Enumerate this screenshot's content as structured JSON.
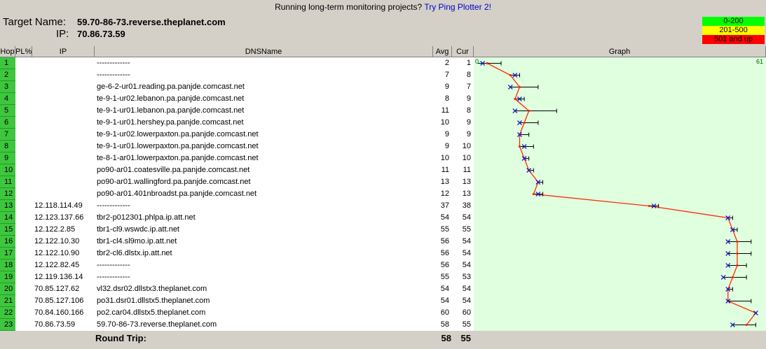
{
  "banner": {
    "text": "Running long-term monitoring projects?",
    "link": "Try Ping Plotter 2!"
  },
  "target": {
    "name_label": "Target Name:",
    "name_value": "59.70-86-73.reverse.theplanet.com",
    "ip_label": "IP:",
    "ip_value": "70.86.73.59"
  },
  "legend": [
    {
      "label": "0-200",
      "color": "#00ff00"
    },
    {
      "label": "201-500",
      "color": "#ffff00"
    },
    {
      "label": "501 and up",
      "color": "#ff0000"
    }
  ],
  "columns": {
    "hop": "Hop",
    "pl": "PL%",
    "ip": "IP",
    "dns": "DNSName",
    "avg": "Avg",
    "cur": "Cur",
    "graph": "Graph"
  },
  "graph": {
    "scale_min": "0",
    "scale_max": "61",
    "line_color": "#ff2a00",
    "marker_color": "#2020c0"
  },
  "rows": [
    {
      "hop": "1",
      "ip": "",
      "dns": "-------------",
      "avg": "2",
      "cur": "1",
      "min": 0,
      "max": 5
    },
    {
      "hop": "2",
      "ip": "",
      "dns": "-------------",
      "avg": "7",
      "cur": "8",
      "min": 7,
      "max": 9
    },
    {
      "hop": "3",
      "ip": "",
      "dns": "ge-6-2-ur01.reading.pa.panjde.comcast.net",
      "avg": "9",
      "cur": "7",
      "min": 7,
      "max": 13
    },
    {
      "hop": "4",
      "ip": "",
      "dns": "te-9-1-ur02.lebanon.pa.panjde.comcast.net",
      "avg": "8",
      "cur": "9",
      "min": 8,
      "max": 10
    },
    {
      "hop": "5",
      "ip": "",
      "dns": "te-9-1-ur01.lebanon.pa.panjde.comcast.net",
      "avg": "11",
      "cur": "8",
      "min": 8,
      "max": 17
    },
    {
      "hop": "6",
      "ip": "",
      "dns": "te-9-1-ur01.hershey.pa.panjde.comcast.net",
      "avg": "10",
      "cur": "9",
      "min": 9,
      "max": 13
    },
    {
      "hop": "7",
      "ip": "",
      "dns": "te-9-1-ur02.lowerpaxton.pa.panjde.comcast.net",
      "avg": "9",
      "cur": "9",
      "min": 9,
      "max": 11
    },
    {
      "hop": "8",
      "ip": "",
      "dns": "te-9-1-ur01.lowerpaxton.pa.panjde.comcast.net",
      "avg": "9",
      "cur": "10",
      "min": 9,
      "max": 12
    },
    {
      "hop": "9",
      "ip": "",
      "dns": "te-8-1-ar01.lowerpaxton.pa.panjde.comcast.net",
      "avg": "10",
      "cur": "10",
      "min": 10,
      "max": 11
    },
    {
      "hop": "10",
      "ip": "",
      "dns": "po90-ar01.coatesville.pa.panjde.comcast.net",
      "avg": "11",
      "cur": "11",
      "min": 11,
      "max": 12
    },
    {
      "hop": "11",
      "ip": "",
      "dns": "po90-ar01.wallingford.pa.panjde.comcast.net",
      "avg": "13",
      "cur": "13",
      "min": 13,
      "max": 14
    },
    {
      "hop": "12",
      "ip": "",
      "dns": "po90-ar01.401nbroadst.pa.panjde.comcast.net",
      "avg": "12",
      "cur": "13",
      "min": 12,
      "max": 14
    },
    {
      "hop": "13",
      "ip": "12.118.114.49",
      "dns": "-------------",
      "avg": "37",
      "cur": "38",
      "min": 37,
      "max": 39
    },
    {
      "hop": "14",
      "ip": "12.123.137.66",
      "dns": "tbr2-p012301.phlpa.ip.att.net",
      "avg": "54",
      "cur": "54",
      "min": 54,
      "max": 55
    },
    {
      "hop": "15",
      "ip": "12.122.2.85",
      "dns": "tbr1-cl9.wswdc.ip.att.net",
      "avg": "55",
      "cur": "55",
      "min": 55,
      "max": 56
    },
    {
      "hop": "16",
      "ip": "12.122.10.30",
      "dns": "tbr1-cl4.sl9mo.ip.att.net",
      "avg": "56",
      "cur": "54",
      "min": 54,
      "max": 59
    },
    {
      "hop": "17",
      "ip": "12.122.10.90",
      "dns": "tbr2-cl6.dlstx.ip.att.net",
      "avg": "56",
      "cur": "54",
      "min": 54,
      "max": 59
    },
    {
      "hop": "18",
      "ip": "12.122.82.45",
      "dns": "-------------",
      "avg": "56",
      "cur": "54",
      "min": 54,
      "max": 58
    },
    {
      "hop": "19",
      "ip": "12.119.136.14",
      "dns": "-------------",
      "avg": "55",
      "cur": "53",
      "min": 53,
      "max": 58
    },
    {
      "hop": "20",
      "ip": "70.85.127.62",
      "dns": "vl32.dsr02.dllstx3.theplanet.com",
      "avg": "54",
      "cur": "54",
      "min": 54,
      "max": 55
    },
    {
      "hop": "21",
      "ip": "70.85.127.106",
      "dns": "po31.dsr01.dllstx5.theplanet.com",
      "avg": "54",
      "cur": "54",
      "min": 54,
      "max": 59
    },
    {
      "hop": "22",
      "ip": "70.84.160.166",
      "dns": "po2.car04.dllstx5.theplanet.com",
      "avg": "60",
      "cur": "60",
      "min": 60,
      "max": 60
    },
    {
      "hop": "23",
      "ip": "70.86.73.59",
      "dns": "59.70-86-73.reverse.theplanet.com",
      "avg": "58",
      "cur": "55",
      "min": 55,
      "max": 60
    }
  ],
  "round_trip": {
    "label": "Round Trip:",
    "avg": "58",
    "cur": "55"
  }
}
